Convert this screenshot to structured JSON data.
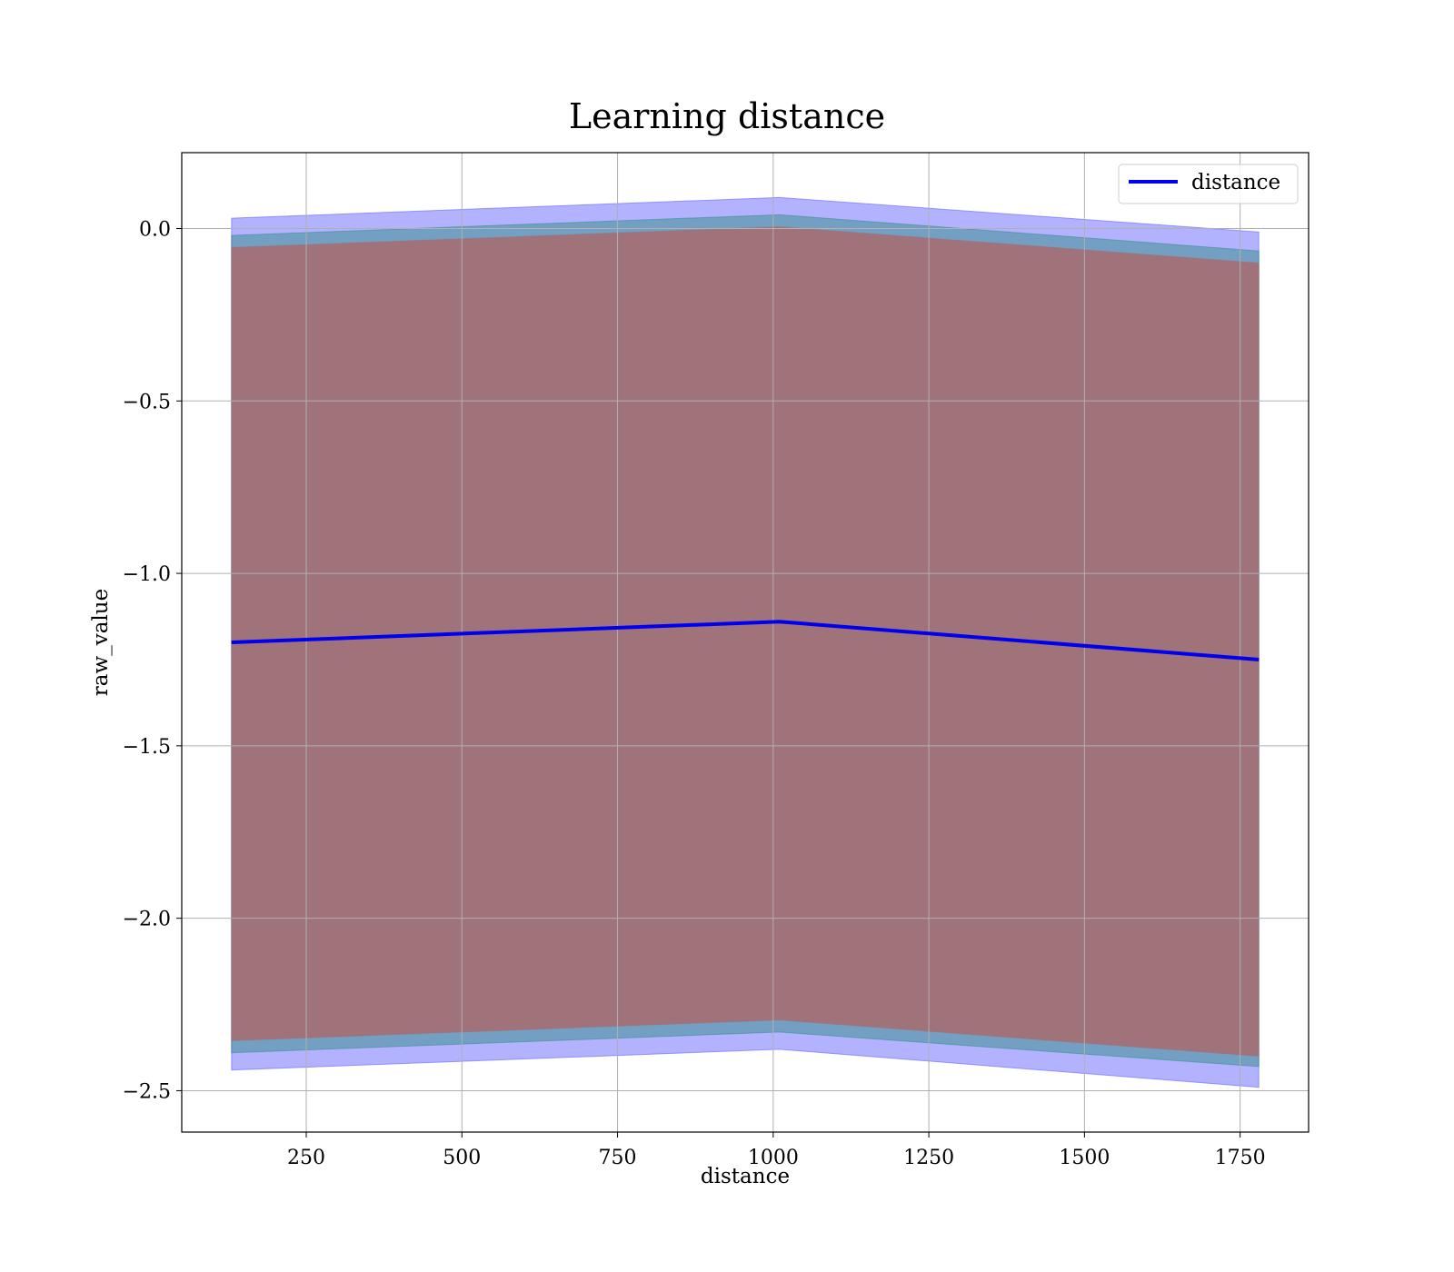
{
  "chart_data": {
    "type": "line",
    "title": "Learning distance",
    "xlabel": "distance",
    "ylabel": "raw_value",
    "xlim": [
      50,
      1860
    ],
    "ylim": [
      -2.62,
      0.22
    ],
    "xticks": [
      250,
      500,
      750,
      1000,
      1250,
      1500,
      1750
    ],
    "xtick_labels": [
      "250",
      "500",
      "750",
      "1000",
      "1250",
      "1500",
      "1750"
    ],
    "yticks": [
      0.0,
      -0.5,
      -1.0,
      -1.5,
      -2.0,
      -2.5
    ],
    "ytick_labels": [
      "0.0",
      "−0.5",
      "−1.0",
      "−1.5",
      "−2.0",
      "−2.5"
    ],
    "grid": true,
    "legend": {
      "position": "top-right",
      "entries": [
        "distance"
      ]
    },
    "x": [
      130,
      1010,
      1780
    ],
    "series": [
      {
        "name": "distance",
        "kind": "line",
        "color": "#0000ee",
        "values": [
          -1.2,
          -1.14,
          -1.25
        ]
      }
    ],
    "bands": [
      {
        "color": "#6666ff",
        "opacity": 0.5,
        "lower": [
          -2.44,
          -2.38,
          -2.49
        ],
        "upper": [
          0.03,
          0.09,
          -0.01
        ]
      },
      {
        "color": "#3f8f8f",
        "opacity": 0.55,
        "lower": [
          -2.39,
          -2.33,
          -2.43
        ],
        "upper": [
          -0.02,
          0.04,
          -0.065
        ]
      },
      {
        "color": "#a0727a",
        "opacity": 1.0,
        "lower": [
          -2.355,
          -2.295,
          -2.4
        ],
        "upper": [
          -0.055,
          0.005,
          -0.1
        ]
      }
    ]
  }
}
